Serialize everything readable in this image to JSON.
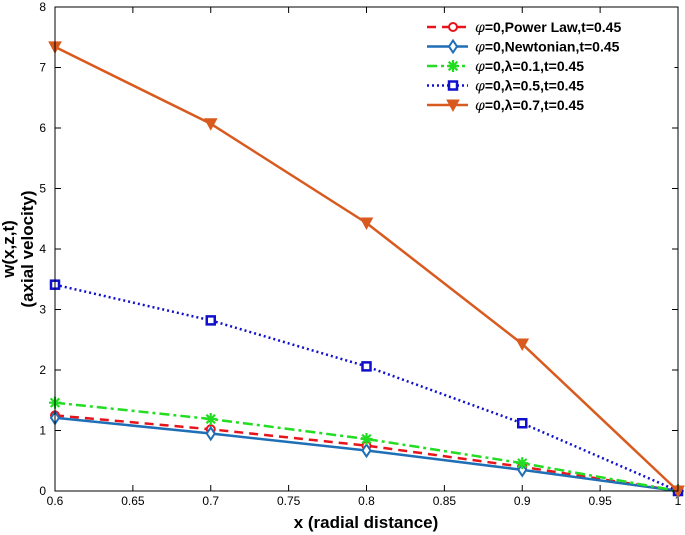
{
  "chart_data": {
    "type": "line",
    "xlabel": "x (radial distance)",
    "ylabel": [
      "w(x,z,t)",
      "(axial velocity)"
    ],
    "xlim": [
      0.6,
      1
    ],
    "ylim": [
      0,
      8
    ],
    "xticks": [
      "0.6",
      "0.65",
      "0.7",
      "0.75",
      "0.8",
      "0.85",
      "0.9",
      "0.95",
      "1"
    ],
    "yticks": [
      "0",
      "1",
      "2",
      "3",
      "4",
      "5",
      "6",
      "7",
      "8"
    ],
    "grid": false,
    "legend_position": "top-right",
    "x": [
      0.6,
      0.7,
      0.8,
      0.9,
      1.0
    ],
    "series": [
      {
        "name": "φ=0,Power Law,t=0.45",
        "color": "#e8141b",
        "dash": "9,6",
        "marker": "circle",
        "values": [
          1.25,
          1.02,
          0.75,
          0.4,
          0.0
        ]
      },
      {
        "name": "φ=0,Newtonian,t=0.45",
        "color": "#1f6fb7",
        "dash": "",
        "marker": "diamond",
        "values": [
          1.21,
          0.95,
          0.67,
          0.35,
          0.0
        ]
      },
      {
        "name": "φ=0,λ=0.1,t=0.45",
        "color": "#22dd22",
        "dash": "10,4,3,4",
        "marker": "asterisk",
        "values": [
          1.46,
          1.19,
          0.86,
          0.46,
          0.0
        ]
      },
      {
        "name": "φ=0,λ=0.5,t=0.45",
        "color": "#1010cc",
        "dash": "2,3",
        "marker": "square",
        "values": [
          3.41,
          2.82,
          2.06,
          1.12,
          0.0
        ]
      },
      {
        "name": "φ=0,λ=0.7,t=0.45",
        "color": "#d95a1e",
        "dash": "",
        "marker": "triangle-down",
        "values": [
          7.34,
          6.07,
          4.43,
          2.43,
          0.0
        ]
      }
    ]
  }
}
